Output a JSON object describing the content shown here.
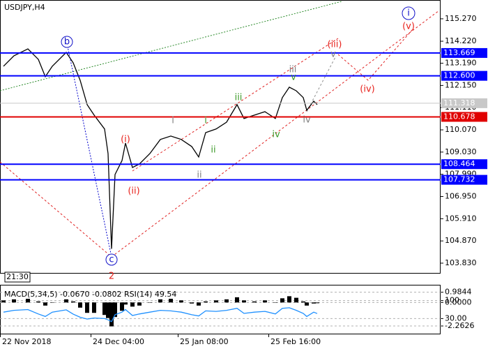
{
  "chart_data": [
    {
      "type": "line",
      "title": "USDJPY,H4",
      "series": [
        {
          "color": "#000000",
          "x": [
            1,
            4,
            8,
            11,
            13,
            15,
            19,
            21,
            23,
            25,
            27,
            30,
            31,
            32,
            33,
            35,
            36,
            38,
            40,
            43,
            46,
            49,
            52,
            55,
            57,
            59,
            62,
            65,
            68,
            70,
            73,
            76,
            79,
            81,
            83,
            85,
            87,
            88,
            90,
            91
          ],
          "values": [
            113.05,
            113.54,
            113.86,
            113.37,
            112.56,
            113.05,
            113.7,
            113.21,
            112.39,
            111.25,
            110.76,
            110.11,
            108.96,
            104.5,
            107.98,
            108.63,
            109.45,
            108.31,
            108.47,
            108.96,
            109.62,
            109.78,
            109.62,
            109.29,
            108.8,
            109.94,
            110.11,
            110.43,
            111.25,
            110.6,
            110.76,
            110.92,
            110.6,
            111.58,
            112.07,
            111.9,
            111.58,
            110.99,
            111.41,
            111.25
          ]
        }
      ],
      "xlim": [
        0,
        126.4
      ],
      "xticks": [
        {
          "value": 0,
          "label": "22 Nov 2018"
        },
        {
          "value": 26,
          "label": "24 Dec 04:00"
        },
        {
          "value": 51,
          "label": "25 Jan 08:00"
        },
        {
          "value": 77,
          "label": "25 Feb 16:00"
        }
      ],
      "ylim": [
        103.34,
        116.15
      ],
      "yticks": [
        {
          "value": 115.27,
          "label": "115.270"
        },
        {
          "value": 114.22,
          "label": "114.220"
        },
        {
          "value": 113.19,
          "label": "113.190"
        },
        {
          "value": 112.15,
          "label": "112.150"
        },
        {
          "value": 111.11,
          "label": "111.110"
        },
        {
          "value": 110.07,
          "label": "110.070"
        },
        {
          "value": 109.03,
          "label": "109.030"
        },
        {
          "value": 107.99,
          "label": "107.990"
        },
        {
          "value": 106.95,
          "label": "106.950"
        },
        {
          "value": 105.91,
          "label": "105.910"
        },
        {
          "value": 104.87,
          "label": "104.870"
        },
        {
          "value": 103.83,
          "label": "103.830"
        }
      ],
      "levels": [
        {
          "value": 113.669,
          "label": "113.669",
          "color": "#0000ff"
        },
        {
          "value": 112.6,
          "label": "112.600",
          "color": "#0000ff"
        },
        {
          "value": 111.318,
          "label": "111.318",
          "color": "#c8c8c8"
        },
        {
          "value": 110.678,
          "label": "110.678",
          "color": "#e00000"
        },
        {
          "value": 108.464,
          "label": "108.464",
          "color": "#0000ff"
        },
        {
          "value": 107.732,
          "label": "107.732",
          "color": "#0000ff"
        }
      ],
      "annotations": [
        "b",
        "c",
        "2",
        "i",
        "(v)",
        "(iii)",
        "(iv)",
        "(i)",
        "(ii)",
        "iii",
        "v",
        "i",
        "ii",
        "iv",
        "iii",
        "i",
        "ii",
        "iv",
        "v"
      ],
      "time_label": "21:30"
    },
    {
      "type": "bar",
      "title": "MACD(5,34,5) -0.0670 -0.0802 RSI(14) 49.54",
      "series": [
        {
          "color": "#000000",
          "x": [
            1,
            4,
            8,
            11,
            13,
            15,
            19,
            21,
            23,
            25,
            27,
            30,
            31,
            32,
            33,
            35,
            36,
            38,
            40,
            43,
            46,
            49,
            52,
            55,
            57,
            59,
            62,
            65,
            68,
            70,
            73,
            76,
            79,
            81,
            83,
            85,
            87,
            88,
            90,
            91
          ],
          "values": [
            0.2,
            0.3,
            0.35,
            0.1,
            -0.3,
            0.0,
            0.3,
            0.1,
            -0.5,
            -1.0,
            -1.0,
            -1.2,
            -1.5,
            -2.3,
            -1.4,
            -0.8,
            -0.2,
            -0.4,
            -0.3,
            0.0,
            0.3,
            0.35,
            0.2,
            -0.1,
            -0.3,
            0.1,
            0.2,
            0.3,
            0.5,
            0.2,
            0.1,
            0.2,
            0.0,
            0.4,
            0.6,
            0.45,
            0.1,
            -0.3,
            -0.1,
            -0.07
          ]
        },
        {
          "color": "#1e90ff",
          "axis": "y2",
          "x": [
            1,
            4,
            8,
            11,
            13,
            15,
            19,
            21,
            23,
            25,
            27,
            30,
            31,
            32,
            33,
            35,
            36,
            38,
            40,
            43,
            46,
            49,
            52,
            55,
            57,
            59,
            62,
            65,
            68,
            70,
            73,
            76,
            79,
            81,
            83,
            85,
            87,
            88,
            90,
            91
          ],
          "values": [
            55,
            62,
            65,
            48,
            38,
            55,
            64,
            47,
            35,
            28,
            32,
            30,
            25,
            18,
            45,
            55,
            65,
            42,
            48,
            55,
            62,
            60,
            55,
            45,
            40,
            60,
            58,
            62,
            70,
            50,
            55,
            58,
            48,
            70,
            72,
            62,
            50,
            38,
            55,
            49.54
          ]
        }
      ],
      "ylim": [
        -3.0,
        1.7
      ],
      "yticks": [
        0.9844,
        {
          "value": 0,
          "label": "0.0000"
        },
        -2.2626
      ],
      "y2lim": [
        -28.8,
        161.6
      ],
      "y2ticks": [
        100,
        {
          "value": 30,
          "label": "30.00"
        }
      ]
    }
  ]
}
